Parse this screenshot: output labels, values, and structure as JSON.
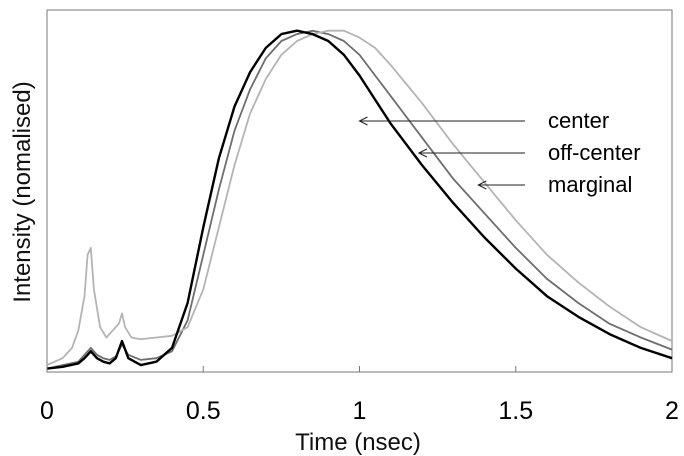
{
  "chart_data": {
    "type": "line",
    "title": "",
    "xlabel": "Time (nsec)",
    "ylabel": "Intensity (nomalised)",
    "xlim": [
      0,
      2
    ],
    "ylim": [
      0,
      1.05
    ],
    "xticks": [
      "0",
      "0.5",
      "1",
      "1.5",
      "2"
    ],
    "grid": false,
    "legend": "annotations at right, arrows pointing to curves",
    "series": [
      {
        "name": "center",
        "color": "#000000",
        "x": [
          0,
          0.05,
          0.1,
          0.12,
          0.14,
          0.16,
          0.18,
          0.2,
          0.22,
          0.24,
          0.26,
          0.3,
          0.35,
          0.4,
          0.45,
          0.5,
          0.55,
          0.6,
          0.65,
          0.7,
          0.75,
          0.8,
          0.85,
          0.9,
          0.95,
          1.0,
          1.05,
          1.1,
          1.2,
          1.3,
          1.4,
          1.5,
          1.6,
          1.7,
          1.8,
          1.9,
          2.0
        ],
        "y": [
          0.01,
          0.015,
          0.025,
          0.04,
          0.06,
          0.04,
          0.03,
          0.025,
          0.04,
          0.09,
          0.04,
          0.02,
          0.03,
          0.07,
          0.2,
          0.42,
          0.62,
          0.77,
          0.87,
          0.94,
          0.98,
          0.99,
          0.98,
          0.96,
          0.92,
          0.86,
          0.79,
          0.72,
          0.6,
          0.49,
          0.39,
          0.3,
          0.22,
          0.16,
          0.11,
          0.07,
          0.04
        ]
      },
      {
        "name": "off-center",
        "color": "#6e6e6e",
        "x": [
          0,
          0.05,
          0.1,
          0.12,
          0.14,
          0.16,
          0.18,
          0.2,
          0.22,
          0.24,
          0.26,
          0.3,
          0.35,
          0.4,
          0.45,
          0.5,
          0.55,
          0.6,
          0.65,
          0.7,
          0.75,
          0.8,
          0.85,
          0.9,
          0.95,
          1.0,
          1.05,
          1.1,
          1.2,
          1.3,
          1.4,
          1.5,
          1.6,
          1.7,
          1.8,
          1.9,
          2.0
        ],
        "y": [
          0.01,
          0.02,
          0.03,
          0.05,
          0.07,
          0.05,
          0.04,
          0.035,
          0.045,
          0.08,
          0.05,
          0.035,
          0.04,
          0.06,
          0.15,
          0.34,
          0.53,
          0.7,
          0.82,
          0.91,
          0.96,
          0.98,
          0.99,
          0.98,
          0.96,
          0.92,
          0.86,
          0.8,
          0.68,
          0.56,
          0.46,
          0.36,
          0.27,
          0.2,
          0.14,
          0.1,
          0.065
        ]
      },
      {
        "name": "marginal",
        "color": "#b4b4b4",
        "x": [
          0,
          0.05,
          0.08,
          0.1,
          0.12,
          0.13,
          0.14,
          0.15,
          0.17,
          0.19,
          0.21,
          0.23,
          0.24,
          0.25,
          0.27,
          0.3,
          0.35,
          0.4,
          0.45,
          0.5,
          0.55,
          0.6,
          0.65,
          0.7,
          0.75,
          0.8,
          0.85,
          0.9,
          0.95,
          1.0,
          1.05,
          1.1,
          1.2,
          1.3,
          1.4,
          1.5,
          1.6,
          1.7,
          1.8,
          1.9,
          2.0
        ],
        "y": [
          0.02,
          0.04,
          0.07,
          0.12,
          0.22,
          0.34,
          0.36,
          0.24,
          0.13,
          0.1,
          0.12,
          0.14,
          0.17,
          0.13,
          0.1,
          0.095,
          0.1,
          0.105,
          0.13,
          0.24,
          0.42,
          0.6,
          0.75,
          0.85,
          0.92,
          0.96,
          0.98,
          0.99,
          0.99,
          0.97,
          0.94,
          0.89,
          0.78,
          0.66,
          0.55,
          0.44,
          0.34,
          0.26,
          0.19,
          0.13,
          0.09
        ]
      }
    ],
    "annotations": [
      {
        "text": "center",
        "target_x": 1.0,
        "target_y": 0.86
      },
      {
        "text": "off-center",
        "target_x": 1.19,
        "target_y": 0.7
      },
      {
        "text": "marginal",
        "target_x": 1.38,
        "target_y": 0.57
      }
    ]
  }
}
